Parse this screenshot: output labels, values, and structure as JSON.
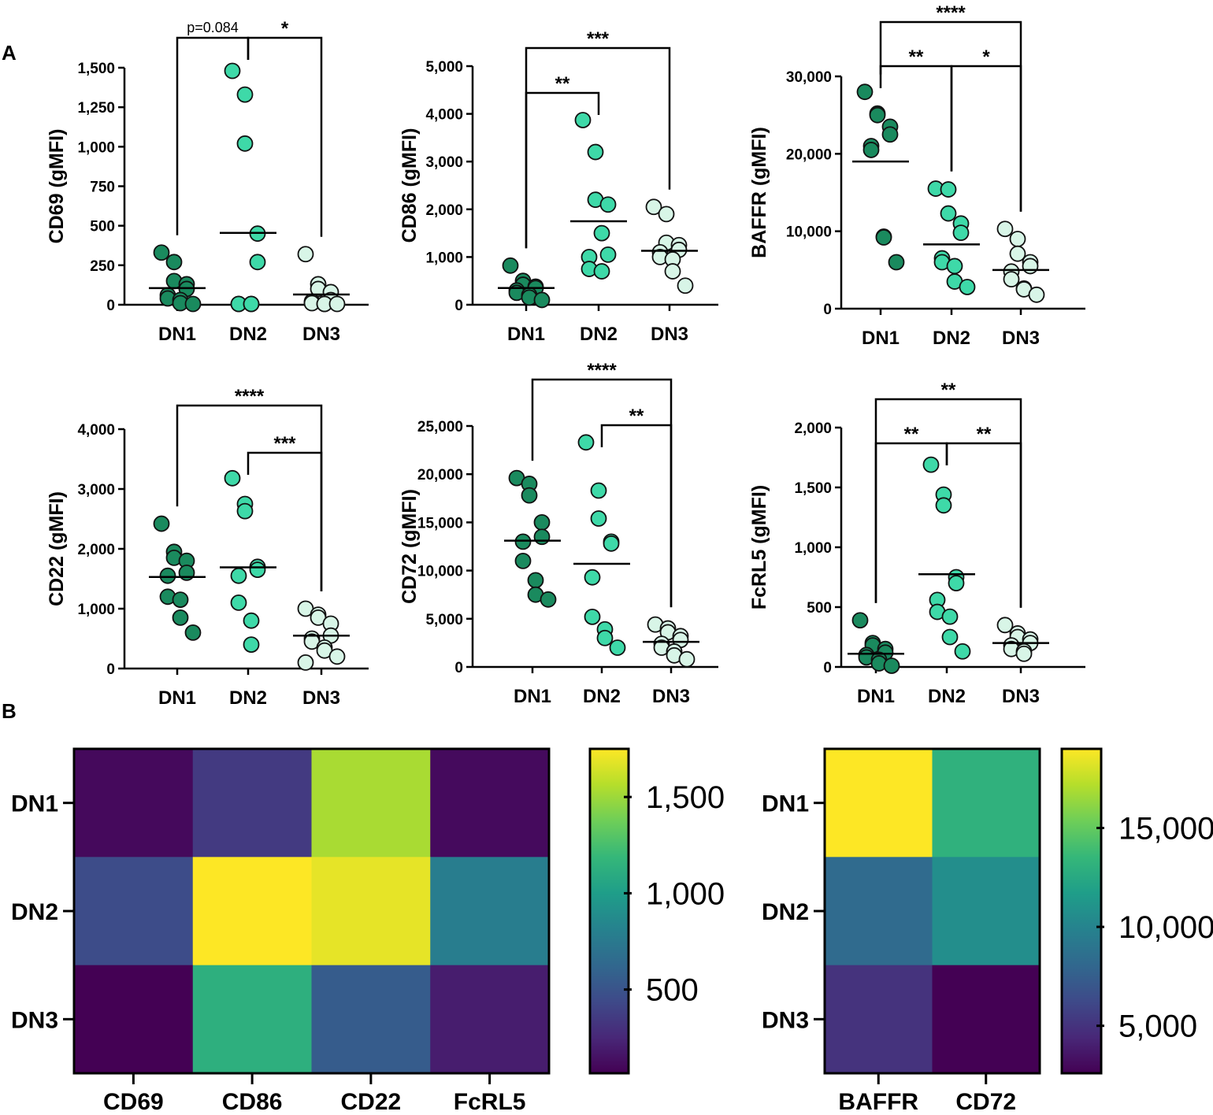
{
  "panel_labels": {
    "a": "A",
    "b": "B"
  },
  "colors": {
    "DN1": "#1a8a5e",
    "DN2": "#3ed9a8",
    "DN3": "#d8f5e7"
  },
  "chart_data": [
    {
      "type": "scatter",
      "title": "",
      "ylabel": "CD69 (gMFI)",
      "ylim": [
        0,
        1500
      ],
      "yticks": [
        0,
        250,
        500,
        750,
        1000,
        1250,
        1500
      ],
      "ytick_labels": [
        "0",
        "250",
        "500",
        "750",
        "1,000",
        "1,250",
        "1,500"
      ],
      "categories": [
        "DN1",
        "DN2",
        "DN3"
      ],
      "points": [
        [
          330,
          270,
          150,
          130,
          100,
          60,
          40,
          30,
          10,
          5
        ],
        [
          1480,
          1330,
          1020,
          450,
          270,
          5,
          5,
          5,
          5
        ],
        [
          320,
          130,
          100,
          80,
          30,
          20,
          10,
          5,
          5,
          5
        ]
      ],
      "means": [
        105,
        455,
        65
      ],
      "significance": [
        {
          "from": 0,
          "to": 1,
          "label": "p=0.084",
          "level": 0
        },
        {
          "from": 1,
          "to": 2,
          "label": "*",
          "level": 0
        }
      ]
    },
    {
      "type": "scatter",
      "title": "",
      "ylabel": "CD86 (gMFI)",
      "ylim": [
        0,
        5000
      ],
      "yticks": [
        0,
        1000,
        2000,
        3000,
        4000,
        5000
      ],
      "ytick_labels": [
        "0",
        "1,000",
        "2,000",
        "3,000",
        "4,000",
        "5,000"
      ],
      "categories": [
        "DN1",
        "DN2",
        "DN3"
      ],
      "points": [
        [
          820,
          500,
          420,
          380,
          350,
          300,
          250,
          200,
          150,
          100
        ],
        [
          3870,
          3200,
          2200,
          2100,
          1050,
          1000,
          750,
          700,
          1500
        ],
        [
          2050,
          1900,
          1300,
          1250,
          1150,
          1100,
          1000,
          950,
          700,
          400
        ]
      ],
      "means": [
        350,
        1750,
        1130
      ],
      "significance": [
        {
          "from": 0,
          "to": 1,
          "label": "**",
          "level": 0
        },
        {
          "from": 0,
          "to": 2,
          "label": "***",
          "level": 1
        }
      ]
    },
    {
      "type": "scatter",
      "title": "",
      "ylabel": "BAFFR (gMFI)",
      "ylim": [
        0,
        30000
      ],
      "yticks": [
        0,
        10000,
        20000,
        30000
      ],
      "ytick_labels": [
        "0",
        "10,000",
        "20,000",
        "30,000"
      ],
      "categories": [
        "DN1",
        "DN2",
        "DN3"
      ],
      "points": [
        [
          28000,
          25200,
          25000,
          23500,
          22500,
          21000,
          20500,
          9300,
          9200,
          6000
        ],
        [
          15500,
          15400,
          12300,
          11000,
          9800,
          6500,
          6000,
          5500,
          3500,
          2800
        ],
        [
          10300,
          9000,
          7100,
          6000,
          5500,
          4800,
          3800,
          2600,
          2500,
          1800
        ]
      ],
      "means": [
        19000,
        8300,
        5000
      ],
      "significance": [
        {
          "from": 0,
          "to": 1,
          "label": "**",
          "level": 0
        },
        {
          "from": 1,
          "to": 2,
          "label": "*",
          "level": 0
        },
        {
          "from": 0,
          "to": 2,
          "label": "****",
          "level": 1
        }
      ]
    },
    {
      "type": "scatter",
      "title": "",
      "ylabel": "CD22 (gMFI)",
      "ylim": [
        0,
        4000
      ],
      "yticks": [
        0,
        1000,
        2000,
        3000,
        4000
      ],
      "ytick_labels": [
        "0",
        "1,000",
        "2,000",
        "3,000",
        "4,000"
      ],
      "categories": [
        "DN1",
        "DN2",
        "DN3"
      ],
      "points": [
        [
          2420,
          1950,
          1850,
          1800,
          1600,
          1550,
          1200,
          1150,
          850,
          600
        ],
        [
          3180,
          2750,
          2630,
          1700,
          1650,
          1550,
          1100,
          800,
          400
        ],
        [
          1000,
          900,
          850,
          750,
          550,
          500,
          450,
          350,
          300,
          200,
          100
        ]
      ],
      "means": [
        1530,
        1690,
        550
      ],
      "significance": [
        {
          "from": 1,
          "to": 2,
          "label": "***",
          "level": 0
        },
        {
          "from": 0,
          "to": 2,
          "label": "****",
          "level": 1
        }
      ]
    },
    {
      "type": "scatter",
      "title": "",
      "ylabel": "CD72 (gMFI)",
      "ylim": [
        0,
        25000
      ],
      "yticks": [
        0,
        5000,
        10000,
        15000,
        20000,
        25000
      ],
      "ytick_labels": [
        "0",
        "5,000",
        "10,000",
        "15,000",
        "20,000",
        "25,000"
      ],
      "categories": [
        "DN1",
        "DN2",
        "DN3"
      ],
      "points": [
        [
          19600,
          19000,
          17800,
          15000,
          13500,
          13000,
          11000,
          9000,
          7500,
          7000
        ],
        [
          23300,
          18300,
          15400,
          13000,
          12800,
          9300,
          5200,
          3900,
          3000,
          2000
        ],
        [
          4400,
          4000,
          3600,
          3200,
          2800,
          2400,
          2000,
          1600,
          1200,
          800
        ]
      ],
      "means": [
        13100,
        10700,
        2600
      ],
      "significance": [
        {
          "from": 1,
          "to": 2,
          "label": "**",
          "level": 0
        },
        {
          "from": 0,
          "to": 2,
          "label": "****",
          "level": 1
        }
      ]
    },
    {
      "type": "scatter",
      "title": "",
      "ylabel": "FcRL5 (gMFI)",
      "ylim": [
        0,
        2000
      ],
      "yticks": [
        0,
        500,
        1000,
        1500,
        2000
      ],
      "ytick_labels": [
        "0",
        "500",
        "1,000",
        "1,500",
        "2,000"
      ],
      "categories": [
        "DN1",
        "DN2",
        "DN3"
      ],
      "points": [
        [
          390,
          200,
          180,
          150,
          120,
          100,
          80,
          60,
          30,
          10
        ],
        [
          1690,
          1440,
          1350,
          750,
          700,
          560,
          460,
          420,
          250,
          130
        ],
        [
          350,
          280,
          250,
          230,
          200,
          180,
          150,
          130,
          110
        ]
      ],
      "means": [
        110,
        775,
        200
      ],
      "significance": [
        {
          "from": 0,
          "to": 1,
          "label": "**",
          "level": 0
        },
        {
          "from": 1,
          "to": 2,
          "label": "**",
          "level": 0
        },
        {
          "from": 0,
          "to": 2,
          "label": "**",
          "level": 1
        }
      ]
    },
    {
      "type": "heatmap",
      "rows": [
        "DN1",
        "DN2",
        "DN3"
      ],
      "columns": [
        "CD69",
        "CD86",
        "CD22",
        "FcRL5"
      ],
      "values": [
        [
          105,
          350,
          1530,
          110
        ],
        [
          455,
          1750,
          1690,
          775
        ],
        [
          65,
          1130,
          550,
          200
        ]
      ],
      "vmin": 65,
      "vmax": 1750,
      "colorbar_ticks": [
        500,
        1000,
        1500
      ],
      "colorbar_labels": [
        "500",
        "1,000",
        "1,500"
      ]
    },
    {
      "type": "heatmap",
      "rows": [
        "DN1",
        "DN2",
        "DN3"
      ],
      "columns": [
        "BAFFR",
        "CD72"
      ],
      "values": [
        [
          19000,
          13100
        ],
        [
          8300,
          10700
        ],
        [
          5000,
          2600
        ]
      ],
      "vmin": 2600,
      "vmax": 19000,
      "colorbar_ticks": [
        5000,
        10000,
        15000
      ],
      "colorbar_labels": [
        "5,000",
        "10,000",
        "15,000"
      ]
    }
  ]
}
